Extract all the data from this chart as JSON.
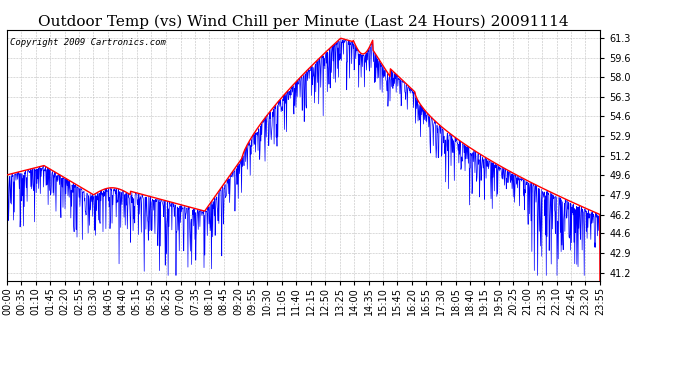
{
  "title": "Outdoor Temp (vs) Wind Chill per Minute (Last 24 Hours) 20091114",
  "copyright": "Copyright 2009 Cartronics.com",
  "yticks": [
    41.2,
    42.9,
    44.6,
    46.2,
    47.9,
    49.6,
    51.2,
    52.9,
    54.6,
    56.3,
    58.0,
    59.6,
    61.3
  ],
  "ylim": [
    40.5,
    62.0
  ],
  "xtick_labels": [
    "00:00",
    "00:35",
    "01:10",
    "01:45",
    "02:20",
    "02:55",
    "03:30",
    "04:05",
    "04:40",
    "05:15",
    "05:50",
    "06:25",
    "07:00",
    "07:35",
    "08:10",
    "08:45",
    "09:20",
    "09:55",
    "10:30",
    "11:05",
    "11:40",
    "12:15",
    "12:50",
    "13:25",
    "14:00",
    "14:35",
    "15:10",
    "15:45",
    "16:20",
    "16:55",
    "17:30",
    "18:05",
    "18:40",
    "19:15",
    "19:50",
    "20:25",
    "21:00",
    "21:35",
    "22:10",
    "22:45",
    "23:20",
    "23:55"
  ],
  "line_blue_color": "#0000ff",
  "line_red_color": "#ff0000",
  "background_color": "#ffffff",
  "grid_color": "#c0c0c0",
  "title_fontsize": 11,
  "copyright_fontsize": 6.5,
  "tick_fontsize": 7
}
